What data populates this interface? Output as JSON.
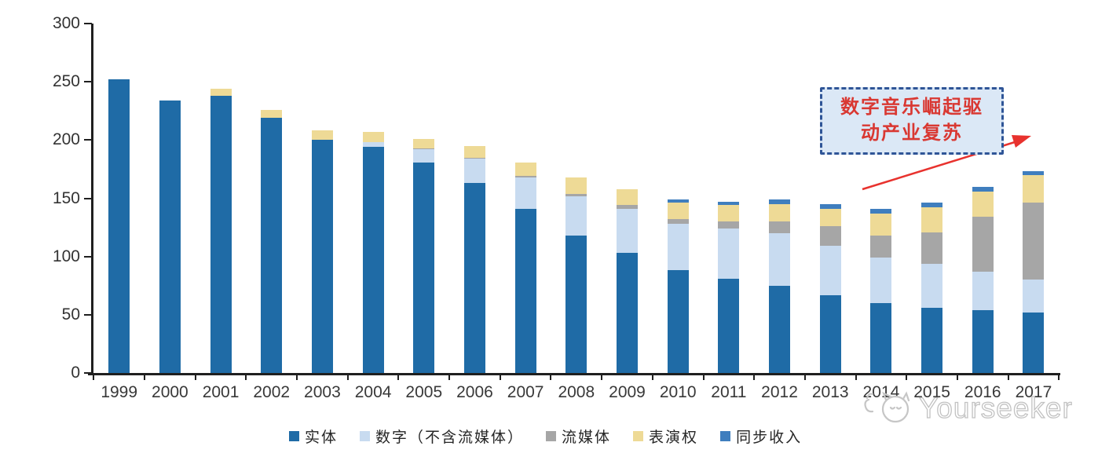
{
  "chart_data": {
    "type": "bar",
    "stacked": true,
    "categories": [
      "1999",
      "2000",
      "2001",
      "2002",
      "2003",
      "2004",
      "2005",
      "2006",
      "2007",
      "2008",
      "2009",
      "2010",
      "2011",
      "2012",
      "2013",
      "2014",
      "2015",
      "2016",
      "2017"
    ],
    "series": [
      {
        "name": "实体",
        "color": "#1f6ba6",
        "values": [
          252,
          234,
          238,
          219,
          200,
          194,
          181,
          163,
          141,
          118,
          103,
          88,
          81,
          75,
          67,
          60,
          56,
          54,
          52
        ]
      },
      {
        "name": "数字（不含流媒体）",
        "color": "#c8dbf0",
        "values": [
          0,
          0,
          0,
          0,
          0,
          4,
          11,
          21,
          27,
          34,
          38,
          40,
          43,
          45,
          42,
          39,
          38,
          33,
          28
        ]
      },
      {
        "name": "流媒体",
        "color": "#a6a6a6",
        "values": [
          0,
          0,
          0,
          0,
          0,
          0,
          1,
          1,
          1,
          2,
          3,
          4,
          6,
          10,
          17,
          19,
          27,
          47,
          66
        ]
      },
      {
        "name": "表演权",
        "color": "#eeda96",
        "values": [
          0,
          0,
          6,
          7,
          8,
          9,
          8,
          10,
          12,
          14,
          14,
          14,
          14,
          15,
          15,
          19,
          21,
          22,
          24
        ]
      },
      {
        "name": "同步收入",
        "color": "#3f7ebe",
        "values": [
          0,
          0,
          0,
          0,
          0,
          0,
          0,
          0,
          0,
          0,
          0,
          3,
          3,
          4,
          4,
          4,
          4,
          4,
          3
        ]
      }
    ],
    "ylim": [
      0,
      300
    ],
    "yticks": [
      0,
      50,
      100,
      150,
      200,
      250,
      300
    ],
    "xlabel": "",
    "ylabel": "",
    "title": "",
    "grid": false,
    "legend_position": "bottom"
  },
  "annotation": {
    "line1": "数字音乐崛起驱",
    "line2": "动产业复苏",
    "text_color": "#d93832",
    "border_color": "#2f5597",
    "fill_color": "#dbe8f6",
    "arrow_color": "#e8322e"
  },
  "watermark": {
    "text": "Yourseeker"
  }
}
